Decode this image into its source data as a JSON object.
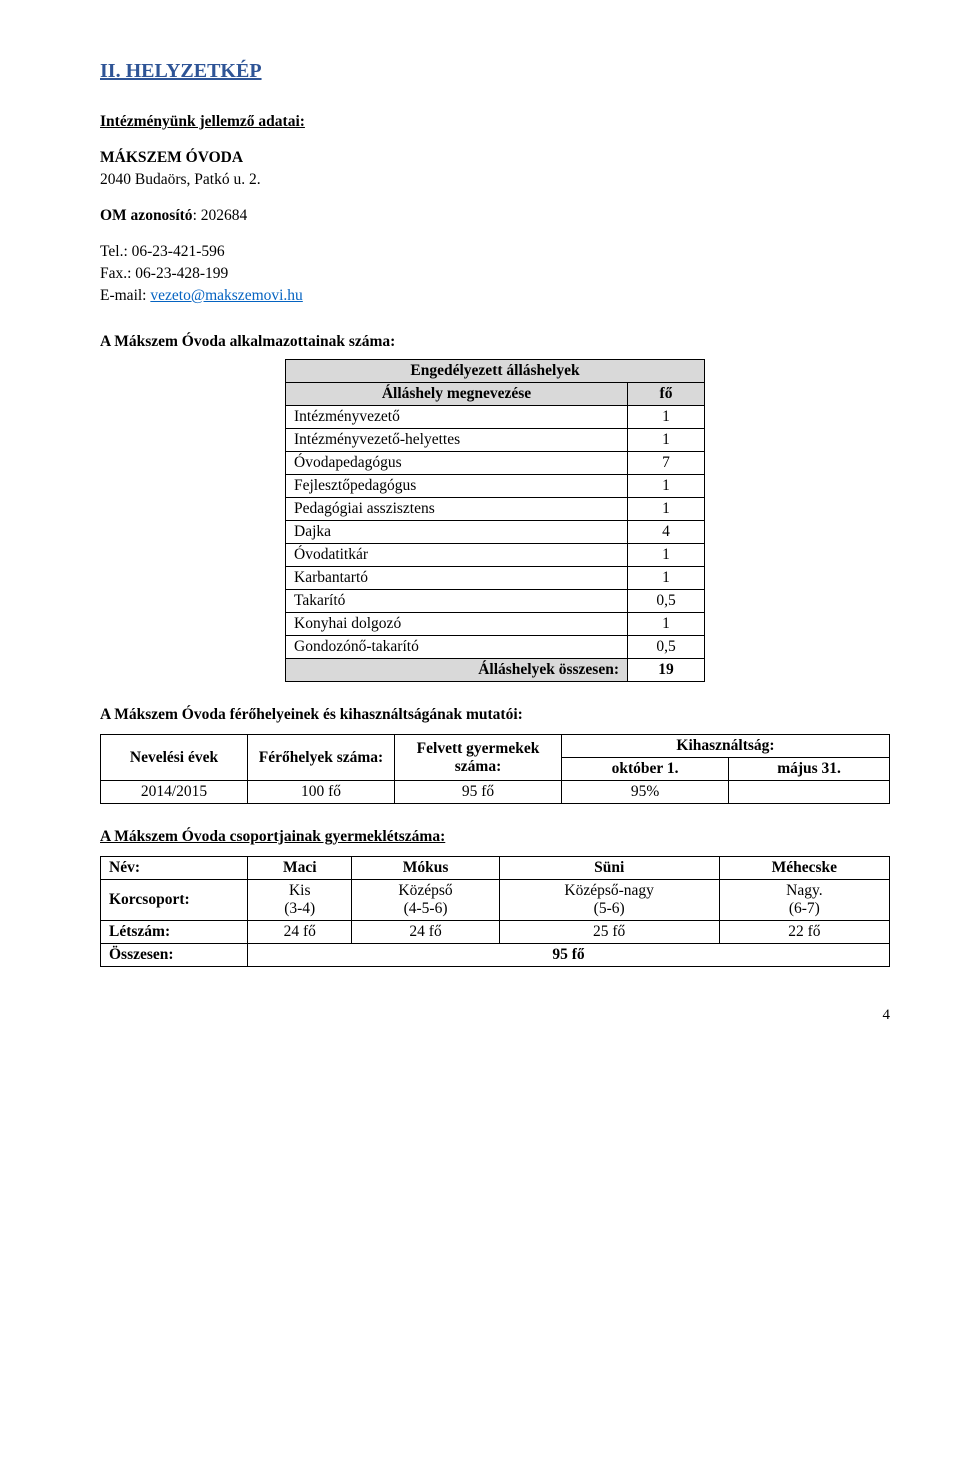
{
  "colors": {
    "heading": "#2e5496",
    "link": "#0563c1",
    "shade": "#d9d9d9",
    "border": "#000000",
    "bg": "#ffffff",
    "text": "#000000"
  },
  "heading": "II. HELYZETKÉP",
  "intro": {
    "subheading": "Intézményünk jellemző adatai:",
    "name": "MÁKSZEM ÓVODA",
    "address": "2040 Budaörs, Patkó u. 2.",
    "om_label": "OM azonosító",
    "om_value": ": 202684",
    "tel": "Tel.:  06-23-421-596",
    "fax": "Fax.: 06-23-428-199",
    "email_label": "E-mail: ",
    "email": "vezeto@makszemovi.hu"
  },
  "staff": {
    "title": "A Mákszem Óvoda alkalmazottainak száma:",
    "header_top": "Engedélyezett álláshelyek",
    "header_col1": "Álláshely megnevezése",
    "header_col2": "fő",
    "rows": [
      {
        "label": "Intézményvezető",
        "value": "1"
      },
      {
        "label": "Intézményvezető-helyettes",
        "value": "1"
      },
      {
        "label": "Óvodapedagógus",
        "value": "7"
      },
      {
        "label": "Fejlesztőpedagógus",
        "value": "1"
      },
      {
        "label": "Pedagógiai asszisztens",
        "value": "1"
      },
      {
        "label": "Dajka",
        "value": "4"
      },
      {
        "label": "Óvodatitkár",
        "value": "1"
      },
      {
        "label": "Karbantartó",
        "value": "1"
      },
      {
        "label": "Takarító",
        "value": "0,5"
      },
      {
        "label": "Konyhai dolgozó",
        "value": "1"
      },
      {
        "label": "Gondozónő-takarító",
        "value": "0,5"
      }
    ],
    "footer_label": "Álláshelyek összesen:",
    "footer_value": "19"
  },
  "capacity": {
    "title": "A Mákszem Óvoda férőhelyeinek és kihasználtságának mutatói:",
    "columns": {
      "c1": "Nevelési évek",
      "c2": "Férőhelyek száma:",
      "c3": "Felvett gyermekek száma:",
      "c4": "Kihasználtság:",
      "c4a": "október 1.",
      "c4b": "május 31."
    },
    "row": {
      "year": "2014/2015",
      "places": "100 fő",
      "admitted": "95 fő",
      "oct": "95%",
      "may": ""
    }
  },
  "groups": {
    "title": "A Mákszem Óvoda csoportjainak gyermeklétszáma:",
    "headers": [
      "Név:",
      "Maci",
      "Mókus",
      "Süni",
      "Méhecske"
    ],
    "age_label": "Korcsoport:",
    "age_top": [
      "Kis",
      "Középső",
      "Középső-nagy",
      "Nagy."
    ],
    "age_bottom": [
      "(3-4)",
      "(4-5-6)",
      "(5-6)",
      "(6-7)"
    ],
    "count_label": "Létszám:",
    "counts": [
      "24 fő",
      "24 fő",
      "25 fő",
      "22 fő"
    ],
    "total_label": "Összesen:",
    "total_value": "95 fő"
  },
  "page_number": "4"
}
